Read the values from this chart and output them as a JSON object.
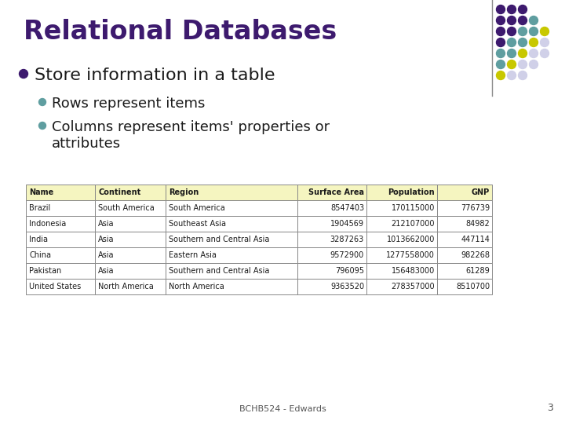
{
  "title": "Relational Databases",
  "title_color": "#3d1a6e",
  "background_color": "#ffffff",
  "bullet1": "Store information in a table",
  "bullet1_color": "#1a1a1a",
  "bullet1_dot_color": "#3d1a6e",
  "sub_bullet1": "Rows represent items",
  "sub_bullet2": "Columns represent items' properties or\nattributes",
  "sub_dot_color": "#5f9ea0",
  "table_header": [
    "Name",
    "Continent",
    "Region",
    "Surface Area",
    "Population",
    "GNP"
  ],
  "table_header_bg": "#f5f5c0",
  "table_rows": [
    [
      "Brazil",
      "South America",
      "South America",
      "8547403",
      "170115000",
      "776739"
    ],
    [
      "Indonesia",
      "Asia",
      "Southeast Asia",
      "1904569",
      "212107000",
      "84982"
    ],
    [
      "India",
      "Asia",
      "Southern and Central Asia",
      "3287263",
      "1013662000",
      "447114"
    ],
    [
      "China",
      "Asia",
      "Eastern Asia",
      "9572900",
      "1277558000",
      "982268"
    ],
    [
      "Pakistan",
      "Asia",
      "Southern and Central Asia",
      "796095",
      "156483000",
      "61289"
    ],
    [
      "United States",
      "North America",
      "North America",
      "9363520",
      "278357000",
      "8510700"
    ]
  ],
  "table_border_color": "#888888",
  "table_row_bg": "#ffffff",
  "footer_text": "BCHB524 - Edwards",
  "page_num": "3",
  "dot_grid_colors": [
    [
      "#3d1a6e",
      "#3d1a6e",
      "#3d1a6e",
      "",
      "",
      ""
    ],
    [
      "#3d1a6e",
      "#3d1a6e",
      "#3d1a6e",
      "#5f9ea0",
      "",
      ""
    ],
    [
      "#3d1a6e",
      "#3d1a6e",
      "#5f9ea0",
      "#5f9ea0",
      "#c8c800",
      ""
    ],
    [
      "#3d1a6e",
      "#5f9ea0",
      "#5f9ea0",
      "#c8c800",
      "#c8c800",
      "#d0d0e8"
    ],
    [
      "#5f9ea0",
      "#5f9ea0",
      "#c8c800",
      "#c8c800",
      "#d0d0e8",
      "#d0d0e8"
    ],
    [
      "#5f9ea0",
      "#c8c800",
      "#c8c800",
      "#d0d0e8",
      "#d0d0e8",
      ""
    ],
    [
      "#c8c800",
      "#c8c800",
      "#d0d0e8",
      "#d0d0e8",
      "",
      ""
    ]
  ]
}
